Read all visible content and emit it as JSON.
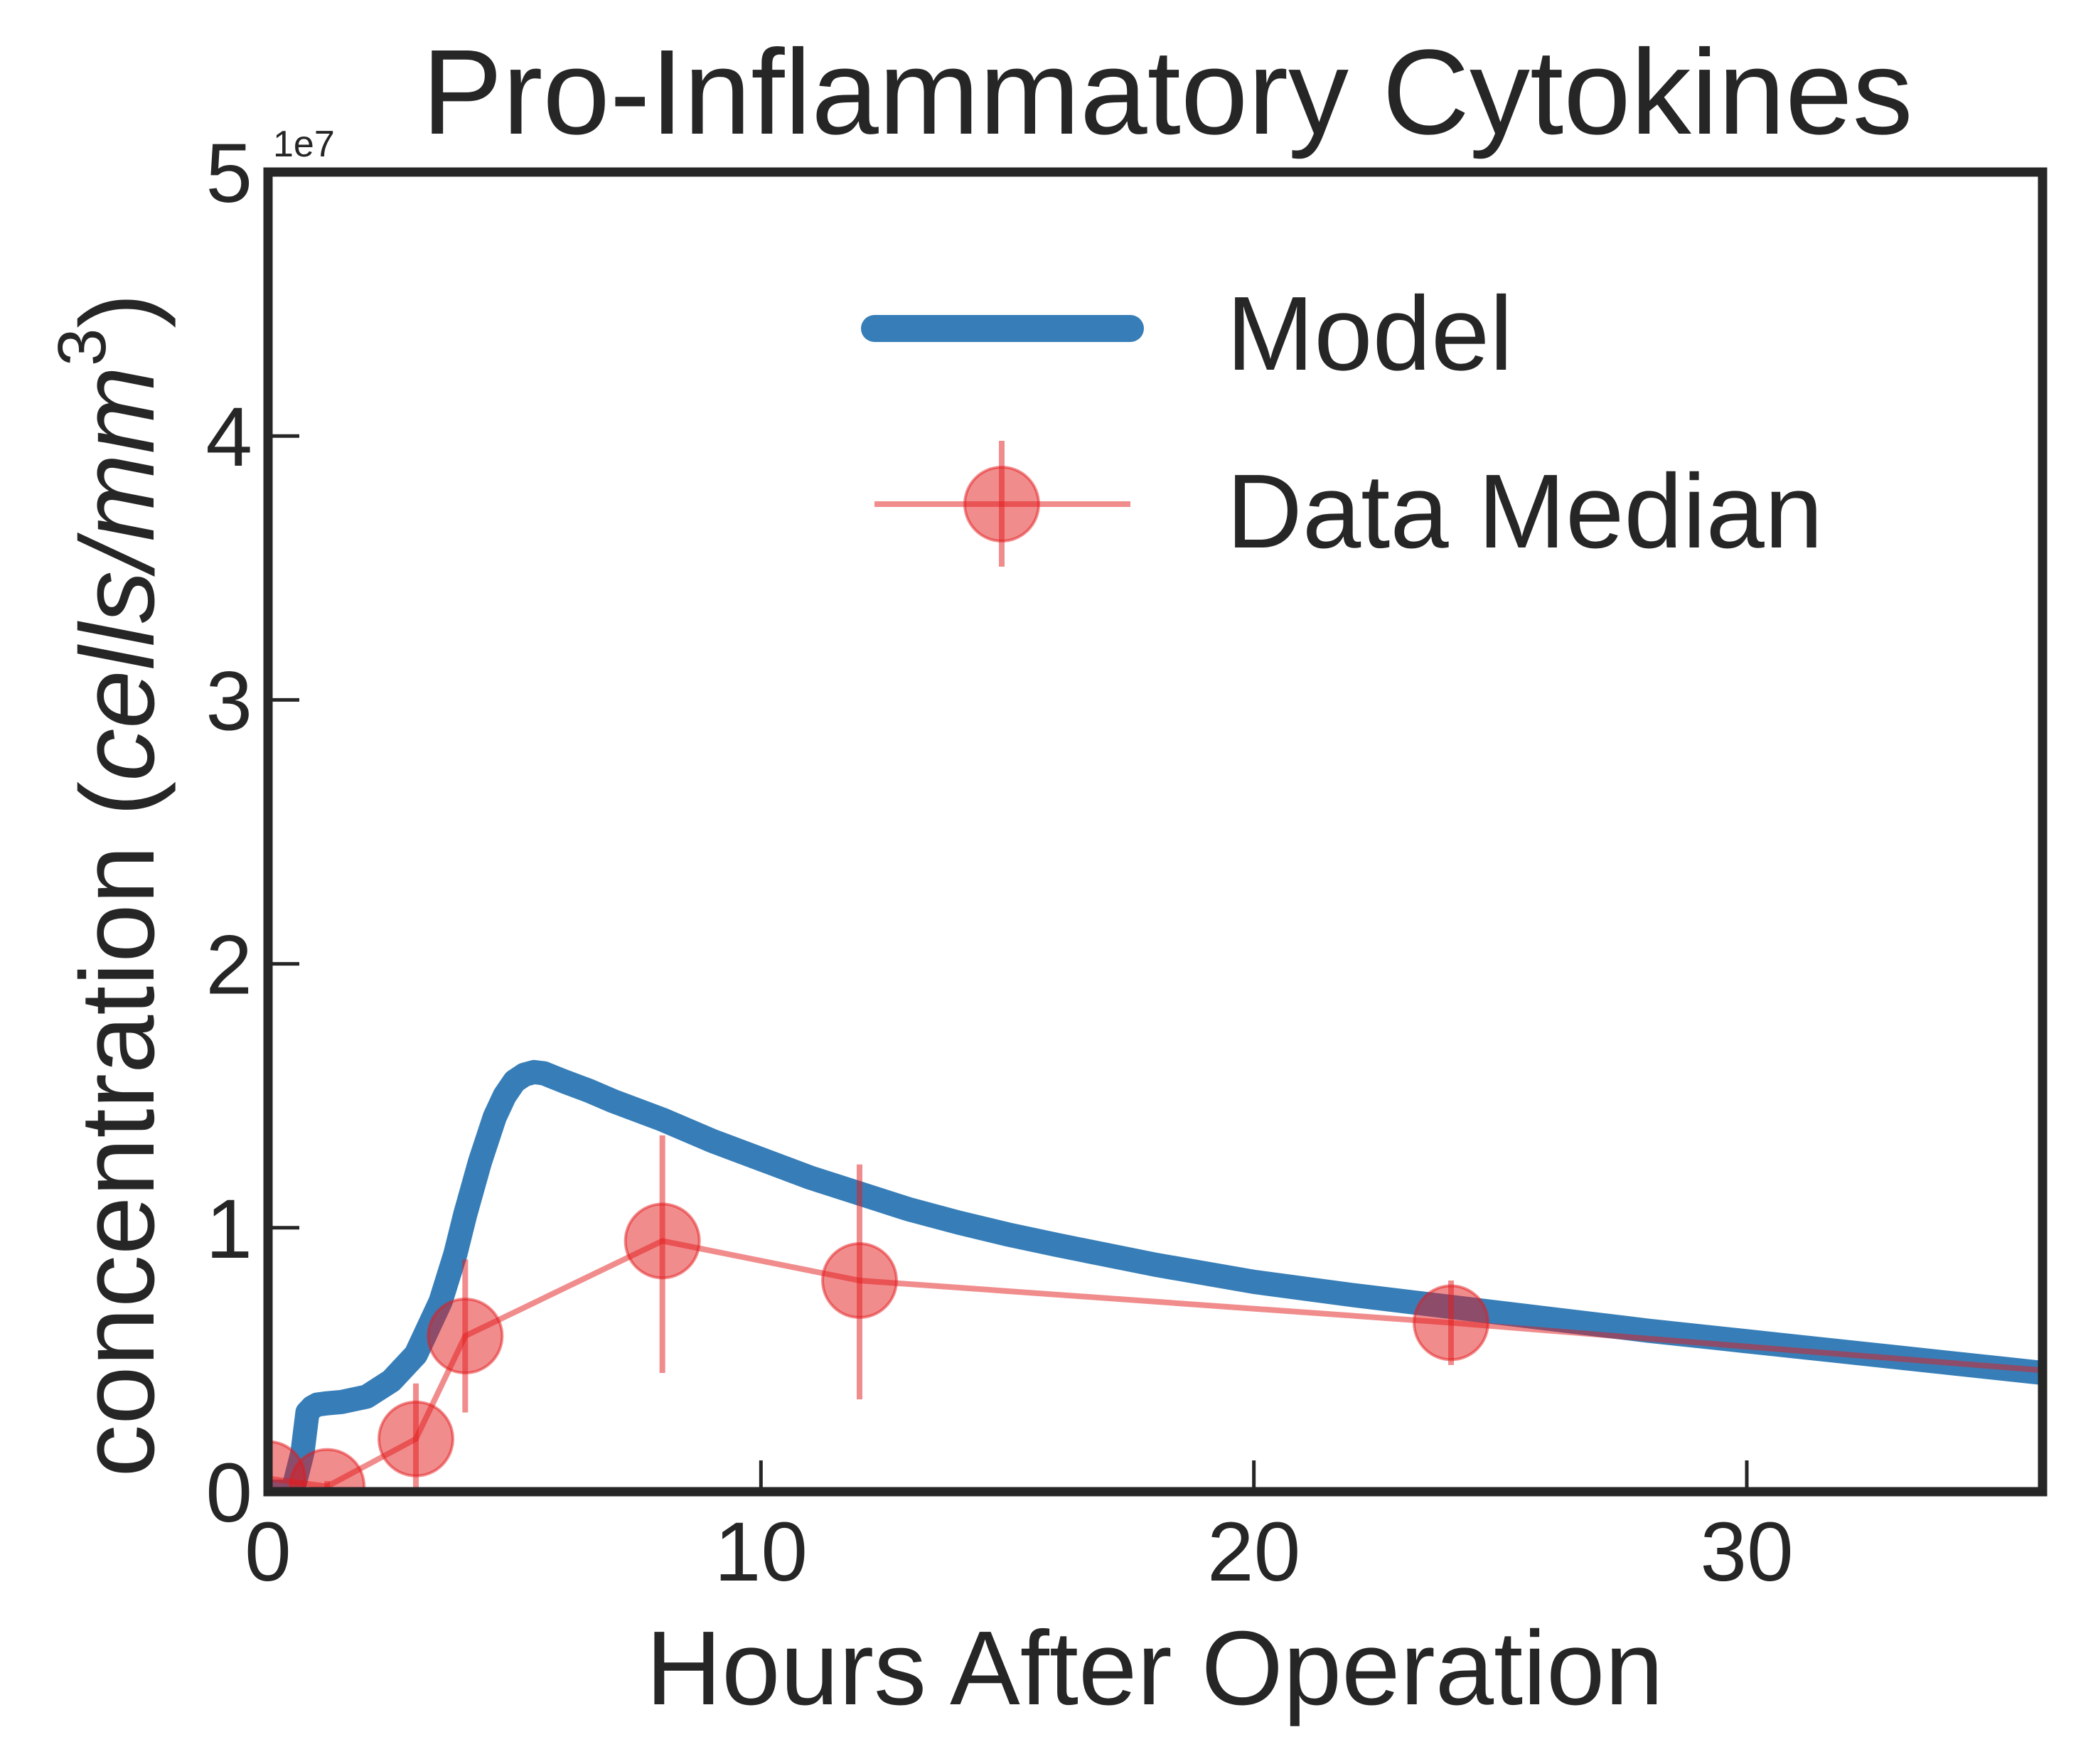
{
  "chart_data": {
    "type": "line",
    "title": "Pro-Inflammatory Cytokines",
    "xlabel": "Hours After Operation",
    "ylabel_prefix": "concentration (",
    "ylabel_unit": "cells/mm",
    "ylabel_exp": "3",
    "ylabel_suffix": ")",
    "y_offset_label": "1e7",
    "xlim": [
      0,
      36
    ],
    "ylim": [
      0,
      5
    ],
    "x_ticks": [
      0,
      10,
      20,
      30
    ],
    "y_ticks": [
      0,
      1,
      2,
      3,
      4,
      5
    ],
    "x_tick_labels": [
      "0",
      "10",
      "20",
      "30"
    ],
    "y_tick_labels": [
      "0",
      "1",
      "2",
      "3",
      "4",
      "5"
    ],
    "grid": false,
    "legend_position": "top-right",
    "series": [
      {
        "name": "Model",
        "kind": "line",
        "color": "#377eb8",
        "x": [
          0,
          0.5,
          0.7,
          0.8,
          0.9,
          1.0,
          1.2,
          1.5,
          2.0,
          2.5,
          3.0,
          3.5,
          3.8,
          4.0,
          4.3,
          4.6,
          4.8,
          5.0,
          5.2,
          5.4,
          5.6,
          5.8,
          6.0,
          6.5,
          7,
          8,
          9,
          10,
          11,
          12,
          13,
          14,
          15,
          16,
          18,
          20,
          22,
          24,
          26,
          28,
          30,
          32,
          34,
          36
        ],
        "y": [
          0,
          0,
          0.15,
          0.3,
          0.32,
          0.33,
          0.335,
          0.34,
          0.36,
          0.42,
          0.52,
          0.72,
          0.9,
          1.05,
          1.25,
          1.42,
          1.5,
          1.555,
          1.58,
          1.59,
          1.585,
          1.57,
          1.555,
          1.52,
          1.48,
          1.41,
          1.33,
          1.26,
          1.19,
          1.13,
          1.07,
          1.02,
          0.975,
          0.935,
          0.86,
          0.795,
          0.745,
          0.7,
          0.655,
          0.61,
          0.57,
          0.53,
          0.49,
          0.45
        ]
      },
      {
        "name": "Data Median",
        "kind": "errorbar",
        "color": "#e41a1c",
        "x": [
          0,
          1.2,
          3,
          4,
          8,
          12,
          24,
          36
        ],
        "y": [
          0.05,
          0.02,
          0.2,
          0.59,
          0.95,
          0.8,
          0.64,
          0.46
        ],
        "yerr_low": [
          0.05,
          0.02,
          0.2,
          0.29,
          0.5,
          0.45,
          0.16,
          0
        ],
        "yerr_high": [
          0.05,
          0.02,
          0.21,
          0.29,
          0.4,
          0.44,
          0.16,
          0
        ],
        "markers": [
          true,
          true,
          true,
          true,
          true,
          true,
          true,
          false
        ]
      }
    ]
  }
}
